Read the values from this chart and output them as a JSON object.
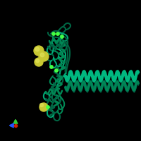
{
  "background_color": "#000000",
  "figure_width": 2.0,
  "figure_height": 2.0,
  "dpi": 100,
  "protein_color_dark": "#006644",
  "protein_color_mid": "#008855",
  "protein_color_light": "#00aa77",
  "helix_color_bright": "#00b880",
  "helix_color_dark": "#007755",
  "yellow_sphere_color": "#c8c832",
  "yellow_sphere_color2": "#b0b020",
  "green_dot_color": "#44ff44",
  "axis_x_color": "#2255ff",
  "axis_y_color": "#33cc33",
  "axis_origin_color": "#cc2200"
}
